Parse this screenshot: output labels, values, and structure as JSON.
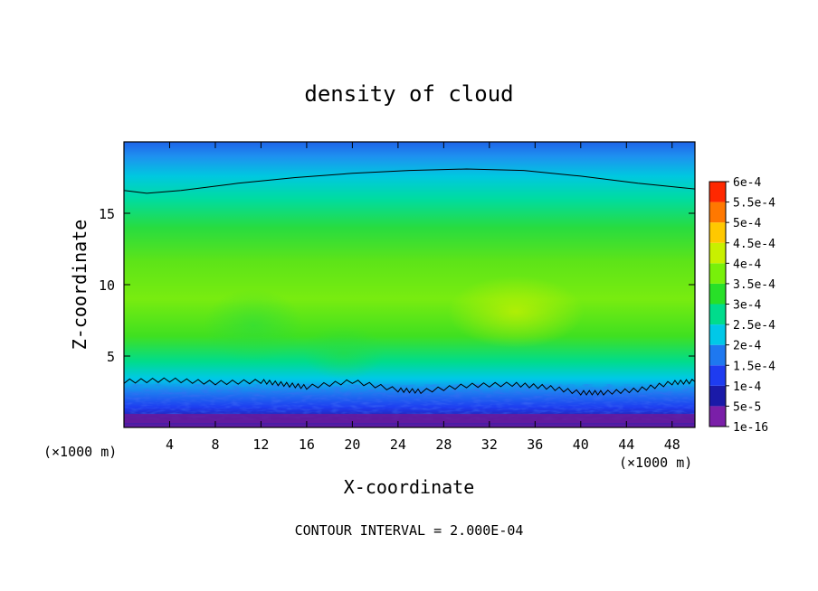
{
  "chart_data": {
    "type": "heatmap",
    "title": "density of cloud",
    "xlabel": "X-coordinate",
    "ylabel": "Z-coordinate",
    "x_unit_left": "(×1000 m)",
    "x_unit_right": "(×1000 m)",
    "xlim": [
      0,
      50
    ],
    "ylim": [
      0,
      20
    ],
    "x_ticks": [
      4,
      8,
      12,
      16,
      20,
      24,
      28,
      32,
      36,
      40,
      44,
      48
    ],
    "y_ticks": [
      5,
      10,
      15
    ],
    "footer": "CONTOUR INTERVAL = 2.000E-04",
    "colorbar": {
      "levels": [
        "1e-16",
        "5e-5",
        "1e-4",
        "1.5e-4",
        "2e-4",
        "2.5e-4",
        "3e-4",
        "3.5e-4",
        "4e-4",
        "4.5e-4",
        "5e-4",
        "5.5e-4",
        "6e-4"
      ],
      "colors": [
        "#7a1fa8",
        "#1a1aa8",
        "#1e3cf0",
        "#1e78f0",
        "#00c8e8",
        "#00dc8c",
        "#28e028",
        "#78f00a",
        "#c8f000",
        "#ffc800",
        "#ff7800",
        "#ff2800",
        "#ff8c8c"
      ]
    },
    "contour_upper": [
      [
        0,
        16.6
      ],
      [
        2,
        16.4
      ],
      [
        5,
        16.6
      ],
      [
        10,
        17.1
      ],
      [
        15,
        17.5
      ],
      [
        20,
        17.8
      ],
      [
        25,
        18.0
      ],
      [
        30,
        18.1
      ],
      [
        35,
        18.0
      ],
      [
        40,
        17.6
      ],
      [
        45,
        17.1
      ],
      [
        50,
        16.7
      ]
    ],
    "contour_lower": [
      [
        0,
        3.2
      ],
      [
        4,
        3.3
      ],
      [
        8,
        3.1
      ],
      [
        12,
        3.2
      ],
      [
        14,
        3.0
      ],
      [
        16,
        2.8
      ],
      [
        20,
        3.2
      ],
      [
        24,
        2.6
      ],
      [
        26,
        2.5
      ],
      [
        30,
        2.9
      ],
      [
        34,
        3.0
      ],
      [
        37,
        2.8
      ],
      [
        40,
        2.4
      ],
      [
        42,
        2.4
      ],
      [
        45,
        2.6
      ],
      [
        48,
        3.1
      ],
      [
        50,
        3.2
      ]
    ]
  }
}
